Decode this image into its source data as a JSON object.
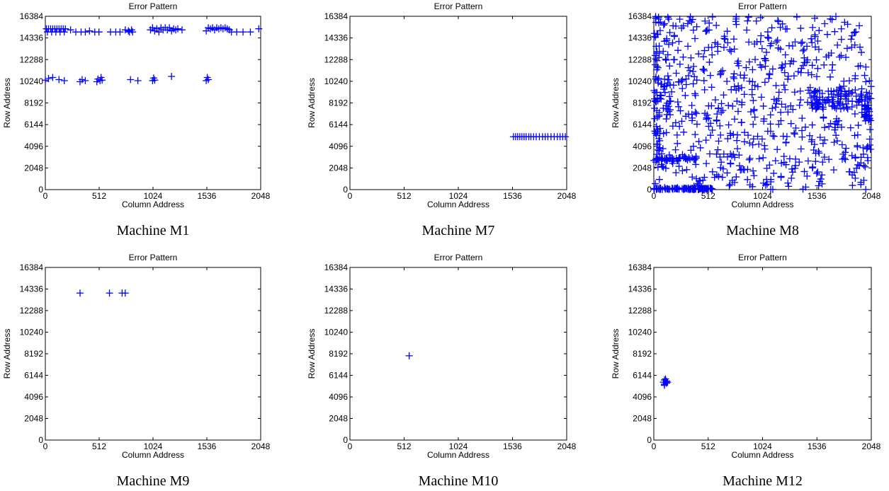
{
  "colors": {
    "marker": "#0000ff",
    "axis": "#000000",
    "background": "#ffffff"
  },
  "chart_data": [
    {
      "type": "scatter",
      "title": "Error Pattern",
      "xlabel": "Column Address",
      "ylabel": "Row Address",
      "caption": "Machine M1",
      "xlim": [
        0,
        2048
      ],
      "ylim": [
        0,
        16384
      ],
      "xticks": [
        0,
        512,
        1024,
        1536,
        2048
      ],
      "yticks": [
        0,
        2048,
        4096,
        6144,
        8192,
        10240,
        12288,
        14336,
        16384
      ],
      "marker": "+",
      "grid": false,
      "points": [
        [
          10,
          15200
        ],
        [
          30,
          15200
        ],
        [
          50,
          15200
        ],
        [
          70,
          15200
        ],
        [
          90,
          15200
        ],
        [
          110,
          15200
        ],
        [
          130,
          15200
        ],
        [
          150,
          15200
        ],
        [
          170,
          15200
        ],
        [
          190,
          15200
        ],
        [
          20,
          14900
        ],
        [
          60,
          14900
        ],
        [
          100,
          14900
        ],
        [
          140,
          14900
        ],
        [
          180,
          14900
        ],
        [
          240,
          15100
        ],
        [
          290,
          14900
        ],
        [
          340,
          14900
        ],
        [
          380,
          14900
        ],
        [
          420,
          15000
        ],
        [
          470,
          14900
        ],
        [
          510,
          14900
        ],
        [
          620,
          14900
        ],
        [
          670,
          14900
        ],
        [
          710,
          14900
        ],
        [
          760,
          15100
        ],
        [
          790,
          15000
        ],
        [
          800,
          14900
        ],
        [
          820,
          15100
        ],
        [
          830,
          14900
        ],
        [
          1000,
          15100
        ],
        [
          1020,
          15300
        ],
        [
          1040,
          15000
        ],
        [
          1060,
          15200
        ],
        [
          1080,
          14900
        ],
        [
          1100,
          15300
        ],
        [
          1120,
          15100
        ],
        [
          1140,
          15300
        ],
        [
          1160,
          15100
        ],
        [
          1180,
          15300
        ],
        [
          1200,
          15000
        ],
        [
          1220,
          15200
        ],
        [
          1240,
          15100
        ],
        [
          1260,
          15200
        ],
        [
          1300,
          15100
        ],
        [
          1530,
          15000
        ],
        [
          1550,
          15300
        ],
        [
          1570,
          15200
        ],
        [
          1590,
          15300
        ],
        [
          1610,
          15100
        ],
        [
          1630,
          15300
        ],
        [
          1650,
          15200
        ],
        [
          1670,
          15300
        ],
        [
          1690,
          15200
        ],
        [
          1710,
          15300
        ],
        [
          1730,
          15200
        ],
        [
          1750,
          15100
        ],
        [
          1770,
          14900
        ],
        [
          1820,
          14900
        ],
        [
          1880,
          14900
        ],
        [
          1950,
          14900
        ],
        [
          2030,
          15200
        ],
        [
          0,
          10350
        ],
        [
          30,
          10500
        ],
        [
          70,
          10600
        ],
        [
          130,
          10400
        ],
        [
          180,
          10300
        ],
        [
          330,
          10200
        ],
        [
          350,
          10400
        ],
        [
          380,
          10300
        ],
        [
          490,
          10200
        ],
        [
          500,
          10450
        ],
        [
          520,
          10300
        ],
        [
          530,
          10600
        ],
        [
          540,
          10350
        ],
        [
          810,
          10400
        ],
        [
          880,
          10300
        ],
        [
          1020,
          10300
        ],
        [
          1030,
          10550
        ],
        [
          1040,
          10350
        ],
        [
          1200,
          10700
        ],
        [
          1530,
          10300
        ],
        [
          1540,
          10600
        ],
        [
          1550,
          10400
        ]
      ]
    },
    {
      "type": "scatter",
      "title": "Error Pattern",
      "xlabel": "Column Address",
      "ylabel": "Row Address",
      "caption": "Machine M7",
      "xlim": [
        0,
        2048
      ],
      "ylim": [
        0,
        16384
      ],
      "xticks": [
        0,
        512,
        1024,
        1536,
        2048
      ],
      "yticks": [
        0,
        2048,
        4096,
        6144,
        8192,
        10240,
        12288,
        14336,
        16384
      ],
      "marker": "+",
      "grid": false,
      "points": [
        [
          1545,
          5000
        ],
        [
          1565,
          5000
        ],
        [
          1585,
          5000
        ],
        [
          1605,
          5000
        ],
        [
          1625,
          5000
        ],
        [
          1645,
          5000
        ],
        [
          1665,
          5000
        ],
        [
          1690,
          5000
        ],
        [
          1710,
          5000
        ],
        [
          1735,
          5000
        ],
        [
          1760,
          5000
        ],
        [
          1790,
          5000
        ],
        [
          1820,
          5000
        ],
        [
          1845,
          5000
        ],
        [
          1870,
          5000
        ],
        [
          1900,
          5000
        ],
        [
          1930,
          5000
        ],
        [
          1960,
          5000
        ],
        [
          1985,
          5000
        ],
        [
          2010,
          5000
        ],
        [
          2035,
          5000
        ]
      ]
    },
    {
      "type": "scatter",
      "title": "Error Pattern",
      "xlabel": "Column Address",
      "ylabel": "Row Address",
      "caption": "Machine M8",
      "xlim": [
        0,
        2048
      ],
      "ylim": [
        0,
        16384
      ],
      "xticks": [
        0,
        512,
        1024,
        1536,
        2048
      ],
      "yticks": [
        0,
        2048,
        4096,
        6144,
        8192,
        10240,
        12288,
        14336,
        16384
      ],
      "marker": "+",
      "grid": false,
      "random_scatter": {
        "count": 650,
        "x_range": [
          0,
          2048
        ],
        "y_range": [
          0,
          16384
        ],
        "seed": 7
      },
      "clusters": [
        {
          "x_range": [
            0,
            560
          ],
          "y_range": [
            0,
            150
          ],
          "count": 90
        },
        {
          "x_range": [
            0,
            420
          ],
          "y_range": [
            2700,
            3050
          ],
          "count": 40
        },
        {
          "x_range": [
            1450,
            2048
          ],
          "y_range": [
            7600,
            9400
          ],
          "count": 90
        },
        {
          "x_range": [
            1980,
            2048
          ],
          "y_range": [
            6500,
            7800
          ],
          "count": 20
        },
        {
          "x_range": [
            0,
            180
          ],
          "y_range": [
            7000,
            10500
          ],
          "count": 30
        },
        {
          "x_range": [
            0,
            60
          ],
          "y_range": [
            1800,
            16384
          ],
          "count": 40
        }
      ]
    },
    {
      "type": "scatter",
      "title": "Error Pattern",
      "xlabel": "Column Address",
      "ylabel": "Row Address",
      "caption": "Machine M9",
      "xlim": [
        0,
        2048
      ],
      "ylim": [
        0,
        16384
      ],
      "xticks": [
        0,
        512,
        1024,
        1536,
        2048
      ],
      "yticks": [
        0,
        2048,
        4096,
        6144,
        8192,
        10240,
        12288,
        14336,
        16384
      ],
      "marker": "+",
      "grid": false,
      "points": [
        [
          330,
          13950
        ],
        [
          610,
          13950
        ],
        [
          730,
          13950
        ],
        [
          760,
          13950
        ]
      ]
    },
    {
      "type": "scatter",
      "title": "Error Pattern",
      "xlabel": "Column Address",
      "ylabel": "Row Address",
      "caption": "Machine M10",
      "xlim": [
        0,
        2048
      ],
      "ylim": [
        0,
        16384
      ],
      "xticks": [
        0,
        512,
        1024,
        1536,
        2048
      ],
      "yticks": [
        0,
        2048,
        4096,
        6144,
        8192,
        10240,
        12288,
        14336,
        16384
      ],
      "marker": "+",
      "grid": false,
      "points": [
        [
          560,
          8000
        ]
      ]
    },
    {
      "type": "scatter",
      "title": "Error Pattern",
      "xlabel": "Column Address",
      "ylabel": "Row Address",
      "caption": "Machine M12",
      "xlim": [
        0,
        2048
      ],
      "ylim": [
        0,
        16384
      ],
      "xticks": [
        0,
        512,
        1024,
        1536,
        2048
      ],
      "yticks": [
        0,
        2048,
        4096,
        6144,
        8192,
        10240,
        12288,
        14336,
        16384
      ],
      "marker": "+",
      "grid": false,
      "points": [
        [
          90,
          5500
        ],
        [
          100,
          5300
        ],
        [
          100,
          5700
        ],
        [
          110,
          5500
        ],
        [
          120,
          5400
        ],
        [
          120,
          5600
        ],
        [
          130,
          5500
        ],
        [
          110,
          5800
        ],
        [
          100,
          5200
        ]
      ]
    }
  ]
}
